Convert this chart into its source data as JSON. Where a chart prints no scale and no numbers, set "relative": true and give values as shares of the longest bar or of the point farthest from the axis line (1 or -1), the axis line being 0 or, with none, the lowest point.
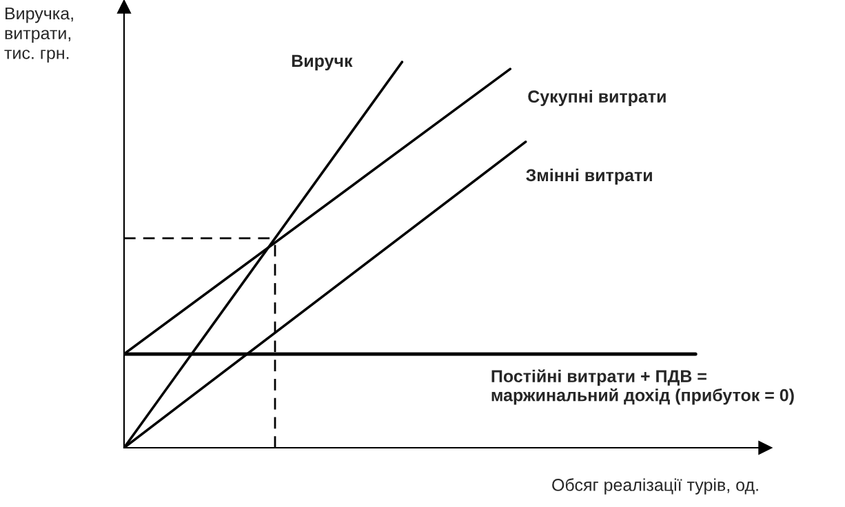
{
  "chart_data": {
    "type": "line",
    "relative": true,
    "xlabel": "Обсяг реалізації турів, од.",
    "ylabel": "Виручка,\nвитрати,\nтис. грн.",
    "categories": [
      null,
      null,
      null,
      null,
      null,
      null,
      null,
      null,
      null,
      null,
      null,
      null,
      null,
      null,
      null,
      null,
      null,
      null,
      null,
      null,
      null,
      null,
      null,
      null,
      null,
      null,
      null,
      null,
      null,
      null,
      null,
      null,
      null,
      null,
      null,
      null,
      null,
      null,
      null,
      null,
      null,
      null
    ],
    "series": [
      {
        "name": "Виручк",
        "color": "#000000",
        "values": [
          0,
          null,
          null,
          null,
          null,
          null,
          null,
          null,
          null,
          null,
          null,
          null,
          null,
          null,
          null,
          null,
          null,
          null,
          1,
          null,
          null,
          null,
          null,
          null,
          null,
          null,
          null,
          null,
          null,
          null,
          null,
          null,
          null,
          null,
          null,
          null,
          null,
          null,
          null,
          null,
          null,
          null
        ]
      },
      {
        "name": "Сукупні витрати",
        "color": "#000000",
        "values": [
          0.243,
          null,
          null,
          null,
          null,
          null,
          null,
          null,
          null,
          null,
          null,
          null,
          null,
          null,
          null,
          null,
          null,
          null,
          null,
          null,
          null,
          null,
          null,
          null,
          null,
          0.982,
          null,
          null,
          null,
          null,
          null,
          null,
          null,
          null,
          null,
          null,
          null,
          null,
          null,
          null,
          null,
          null
        ]
      },
      {
        "name": "Змінні витрати",
        "color": "#000000",
        "values": [
          0,
          null,
          null,
          null,
          null,
          null,
          null,
          null,
          null,
          null,
          null,
          null,
          null,
          null,
          null,
          null,
          null,
          null,
          null,
          null,
          null,
          null,
          null,
          null,
          null,
          null,
          0.793,
          null,
          null,
          null,
          null,
          null,
          null,
          null,
          null,
          null,
          null,
          null,
          null,
          null,
          null,
          null
        ]
      },
      {
        "name": "Постійні витрати + ПДВ =\nмаржинальний дохід (прибуток = 0)",
        "color": "#000000",
        "values": [
          0.243,
          null,
          null,
          null,
          null,
          null,
          null,
          null,
          null,
          null,
          null,
          null,
          null,
          null,
          null,
          null,
          null,
          null,
          null,
          null,
          null,
          null,
          null,
          null,
          null,
          null,
          null,
          null,
          null,
          null,
          null,
          null,
          null,
          null,
          null,
          null,
          null,
          0.243,
          null,
          null,
          null,
          null
        ]
      }
    ],
    "ref_lines": [
      {
        "axis": "y",
        "value": 0.543,
        "color": "#000000",
        "line_style": "dashed"
      }
    ]
  }
}
